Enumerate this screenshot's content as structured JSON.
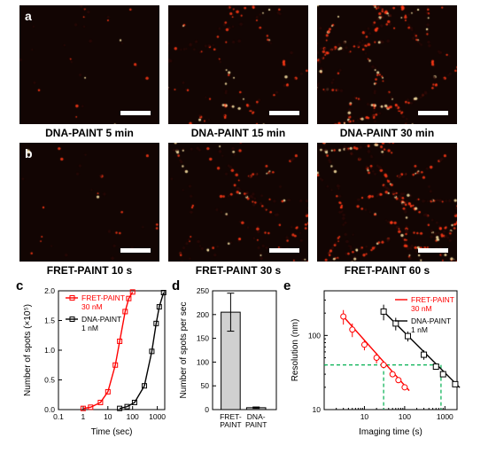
{
  "row_a": {
    "letter": "a",
    "panels": [
      {
        "caption": "DNA-PAINT  5 min",
        "density": 12
      },
      {
        "caption": "DNA-PAINT  15 min",
        "density": 60
      },
      {
        "caption": "DNA-PAINT  30 min",
        "density": 140
      }
    ]
  },
  "row_b": {
    "letter": "b",
    "panels": [
      {
        "caption": "FRET-PAINT  10 s",
        "density": 12
      },
      {
        "caption": "FRET-PAINT  30 s",
        "density": 60
      },
      {
        "caption": "FRET-PAINT  60 s",
        "density": 140
      }
    ]
  },
  "chart_c": {
    "type": "line",
    "letter": "c",
    "xlabel": "Time (sec)",
    "ylabel": "Number of spots (×10⁵)",
    "xscale": "log",
    "xlim": [
      0.1,
      2000
    ],
    "xticks": [
      0.1,
      1,
      10,
      100,
      1000
    ],
    "ylim": [
      0,
      2.0
    ],
    "yticks": [
      0,
      0.5,
      1.0,
      1.5,
      2.0
    ],
    "background_color": "#ffffff",
    "axis_color": "#000000",
    "series": [
      {
        "name": "FRET-PAINT",
        "sub": "30 nM",
        "color": "#ff0000",
        "linewidth": 1.4,
        "marker": "square",
        "x": [
          1,
          2,
          5,
          10,
          20,
          30,
          50,
          70,
          100
        ],
        "y": [
          0.02,
          0.04,
          0.12,
          0.3,
          0.75,
          1.15,
          1.65,
          1.87,
          1.98
        ]
      },
      {
        "name": "DNA-PAINT",
        "sub": "1 nM",
        "color": "#000000",
        "linewidth": 1.4,
        "marker": "square",
        "x": [
          30,
          60,
          120,
          300,
          600,
          900,
          1200,
          1800
        ],
        "y": [
          0.02,
          0.05,
          0.12,
          0.4,
          0.98,
          1.45,
          1.73,
          1.97
        ]
      }
    ]
  },
  "chart_d": {
    "type": "bar",
    "letter": "d",
    "ylabel": "Number of spots per sec",
    "categories": [
      "FRET-\nPAINT",
      "DNA-\nPAINT"
    ],
    "values": [
      205,
      4
    ],
    "errors": [
      40,
      1.5
    ],
    "bar_color": "#d0d0d0",
    "edge_color": "#000000",
    "ylim": [
      0,
      250
    ],
    "yticks": [
      0,
      50,
      100,
      150,
      200,
      250
    ],
    "background_color": "#ffffff",
    "axis_color": "#000000",
    "error_color": "#000000"
  },
  "chart_e": {
    "type": "line",
    "letter": "e",
    "xlabel": "Imaging time (s)",
    "ylabel": "Resolution (nm)",
    "xscale": "log",
    "yscale": "log",
    "xlim": [
      1,
      2000
    ],
    "xticks": [
      10,
      100,
      1000
    ],
    "ylim": [
      10,
      400
    ],
    "yticks": [
      10,
      100
    ],
    "background_color": "#ffffff",
    "axis_color": "#000000",
    "guide_color": "#00b050",
    "guide_y": 40,
    "guide_x": 30,
    "series": [
      {
        "name": "FRET-PAINT",
        "sub": "30 nM",
        "color": "#ff0000",
        "linewidth": 1.4,
        "marker": "open-circle",
        "x": [
          3,
          5,
          10,
          20,
          30,
          50,
          70,
          100
        ],
        "y": [
          180,
          120,
          75,
          50,
          40,
          30,
          25,
          20
        ],
        "err": [
          40,
          25,
          12,
          8,
          0,
          0,
          0,
          0
        ]
      },
      {
        "name": "DNA-PAINT",
        "sub": "1 nM",
        "color": "#000000",
        "linewidth": 1.4,
        "marker": "open-square",
        "x": [
          30,
          60,
          120,
          300,
          600,
          900,
          1800
        ],
        "y": [
          210,
          145,
          98,
          55,
          38,
          30,
          22
        ],
        "err": [
          50,
          28,
          15,
          8,
          0,
          0,
          0
        ]
      }
    ]
  },
  "micro_colormap": {
    "low": "#2a0806",
    "mid": "#ff3a18",
    "high": "#ffe8a8"
  },
  "scalebar_color": "#ffffff"
}
